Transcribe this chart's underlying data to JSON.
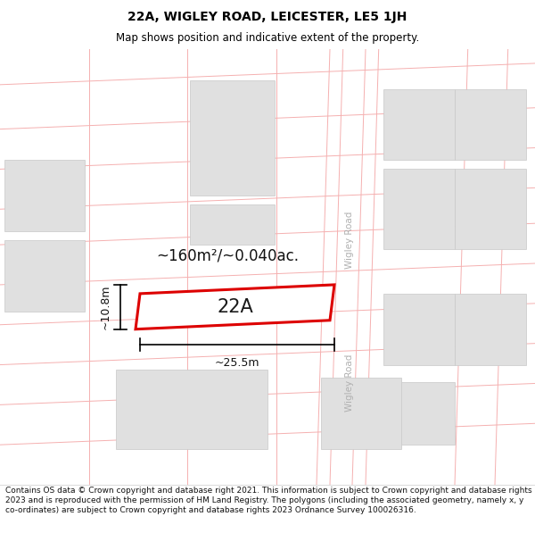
{
  "title": "22A, WIGLEY ROAD, LEICESTER, LE5 1JH",
  "subtitle": "Map shows position and indicative extent of the property.",
  "footer": "Contains OS data © Crown copyright and database right 2021. This information is subject to Crown copyright and database rights 2023 and is reproduced with the permission of HM Land Registry. The polygons (including the associated geometry, namely x, y co-ordinates) are subject to Crown copyright and database rights 2023 Ordnance Survey 100026316.",
  "area_label": "~160m²/~0.040ac.",
  "label_22A": "22A",
  "dim_width": "~25.5m",
  "dim_height": "~10.8m",
  "road_label_top": "Wigley Road",
  "road_label_bottom": "Wigley Road",
  "map_bg": "#ffffff",
  "building_fill": "#e0e0e0",
  "building_stroke": "#c8c8c8",
  "road_line_color": "#f5b0b0",
  "property_fill": "#ffffff",
  "property_stroke": "#dd0000",
  "title_fontsize": 10,
  "subtitle_fontsize": 8.5,
  "footer_fontsize": 6.5
}
